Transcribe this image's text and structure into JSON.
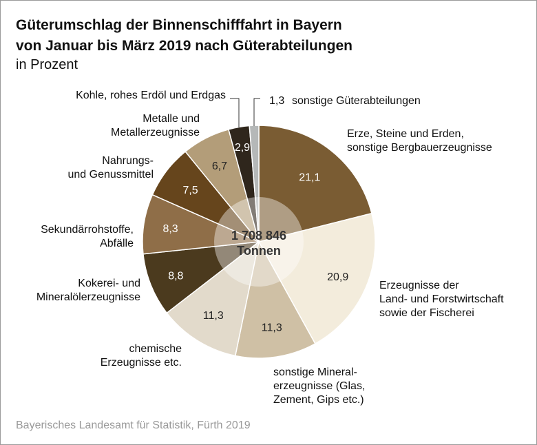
{
  "title_line1": "Güterumschlag der Binnenschifffahrt in Bayern",
  "title_line2": "von Januar bis März 2019 nach Güterabteilungen",
  "subtitle": "in Prozent",
  "source": "Bayerisches Landesamt für Statistik, Fürth 2019",
  "chart_data": {
    "type": "pie",
    "center_label": [
      "1 708 846",
      "Tonnen"
    ],
    "unit": "Prozent",
    "slices": [
      {
        "label": "Erze, Steine und Erden, sonstige Bergbauerzeugnisse",
        "value": 21.1,
        "value_label": "21,1",
        "color": "#7a5c33"
      },
      {
        "label": "Erzeugnisse der Land- und Forstwirtschaft sowie der Fischerei",
        "value": 20.9,
        "value_label": "20,9",
        "color": "#f3ecdc"
      },
      {
        "label": "sonstige Mineralerzeugnisse (Glas, Zement, Gips etc.)",
        "value": 11.3,
        "value_label": "11,3",
        "color": "#cfc0a5"
      },
      {
        "label": "chemische Erzeugnisse etc.",
        "value": 11.3,
        "value_label": "11,3",
        "color": "#e2dacb"
      },
      {
        "label": "Kokerei- und Mineralölerzeugnisse",
        "value": 8.8,
        "value_label": "8,8",
        "color": "#4b3a1e"
      },
      {
        "label": "Sekundärrohstoffe, Abfälle",
        "value": 8.3,
        "value_label": "8,3",
        "color": "#8f6e48"
      },
      {
        "label": "Nahrungs- und Genussmittel",
        "value": 7.5,
        "value_label": "7,5",
        "color": "#66451c"
      },
      {
        "label": "Metalle und Metallerzeugnisse",
        "value": 6.7,
        "value_label": "6,7",
        "color": "#b39d79"
      },
      {
        "label": "Kohle, rohes Erdöl und Erdgas",
        "value": 2.9,
        "value_label": "2,9",
        "color": "#2f261c"
      },
      {
        "label": "sonstige Güterabteilungen",
        "value": 1.3,
        "value_label": "1,3",
        "color": "#b5b8b8"
      }
    ]
  }
}
